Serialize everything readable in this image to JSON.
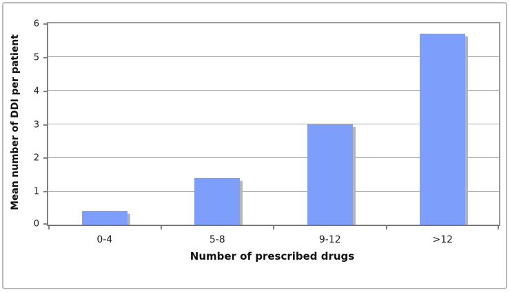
{
  "chart_data": {
    "type": "bar",
    "categories": [
      "0-4",
      "5-8",
      "9-12",
      ">12"
    ],
    "values": [
      0.4,
      1.4,
      3.0,
      5.7
    ],
    "title": "",
    "xlabel": "Number of prescribed drugs",
    "ylabel": "Mean number of DDI per patient",
    "ylim": [
      0,
      6
    ],
    "yticks": [
      0,
      1,
      2,
      3,
      4,
      5,
      6
    ],
    "grid": true,
    "legend": false,
    "series_name": ""
  },
  "colors": {
    "bar_fill": "#7d9efa",
    "bar_shadow": "#b5b5b5",
    "axis_line": "#808080",
    "gridline": "#a9a9a9",
    "outer_border": "#b9b9b9",
    "text": "#1a1a1a",
    "background": "#ffffff"
  }
}
